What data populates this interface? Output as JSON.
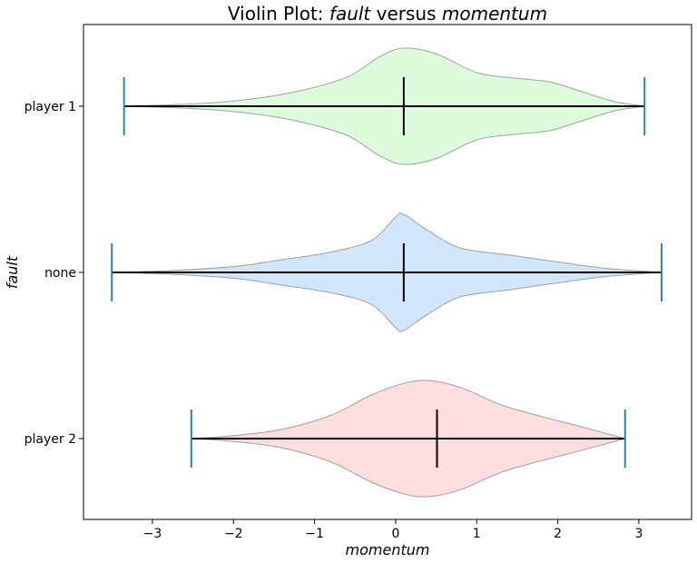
{
  "chart_data": {
    "type": "violin",
    "orientation": "horizontal",
    "title_prefix": "Violin Plot: ",
    "title_var1": "fault",
    "title_mid": " versus ",
    "title_var2": "momentum",
    "xlabel": "momentum",
    "ylabel": "fault",
    "xlim": [
      -3.85,
      3.65
    ],
    "xticks": [
      -3,
      -2,
      -1,
      0,
      1,
      2,
      3
    ],
    "xtick_labels": [
      "−3",
      "−2",
      "−1",
      "0",
      "1",
      "2",
      "3"
    ],
    "grid": false,
    "categories": [
      "player 1",
      "none",
      "player 2"
    ],
    "violins": [
      {
        "category": "player 1",
        "min": -3.35,
        "max": 3.07,
        "median": 0.1,
        "fill_color": "#ddfcdc",
        "density": [
          [
            -3.35,
            0.0
          ],
          [
            -2.5,
            0.04
          ],
          [
            -1.8,
            0.12
          ],
          [
            -1.2,
            0.26
          ],
          [
            -0.6,
            0.5
          ],
          [
            -0.2,
            0.85
          ],
          [
            0.1,
            1.0
          ],
          [
            0.5,
            0.9
          ],
          [
            1.0,
            0.58
          ],
          [
            1.5,
            0.48
          ],
          [
            1.9,
            0.42
          ],
          [
            2.3,
            0.25
          ],
          [
            2.7,
            0.08
          ],
          [
            3.07,
            0.0
          ]
        ]
      },
      {
        "category": "none",
        "min": -3.5,
        "max": 3.28,
        "median": 0.1,
        "fill_color": "#d1e5fd",
        "density": [
          [
            -3.5,
            0.0
          ],
          [
            -2.8,
            0.03
          ],
          [
            -2.0,
            0.1
          ],
          [
            -1.4,
            0.22
          ],
          [
            -0.8,
            0.35
          ],
          [
            -0.3,
            0.55
          ],
          [
            0.0,
            0.95
          ],
          [
            0.1,
            1.0
          ],
          [
            0.4,
            0.72
          ],
          [
            0.8,
            0.42
          ],
          [
            1.4,
            0.3
          ],
          [
            2.0,
            0.18
          ],
          [
            2.6,
            0.07
          ],
          [
            3.28,
            0.0
          ]
        ]
      },
      {
        "category": "player 2",
        "min": -2.52,
        "max": 2.83,
        "median": 0.51,
        "fill_color": "#fdddde",
        "density": [
          [
            -2.52,
            0.0
          ],
          [
            -2.0,
            0.05
          ],
          [
            -1.4,
            0.16
          ],
          [
            -0.8,
            0.4
          ],
          [
            -0.3,
            0.75
          ],
          [
            0.1,
            0.95
          ],
          [
            0.4,
            1.0
          ],
          [
            0.8,
            0.88
          ],
          [
            1.3,
            0.58
          ],
          [
            1.8,
            0.38
          ],
          [
            2.3,
            0.2
          ],
          [
            2.83,
            0.0
          ]
        ]
      }
    ],
    "edge_color": "#a0a0a0",
    "whisker_color": "#2c7fb8",
    "line_color": "#000000"
  }
}
